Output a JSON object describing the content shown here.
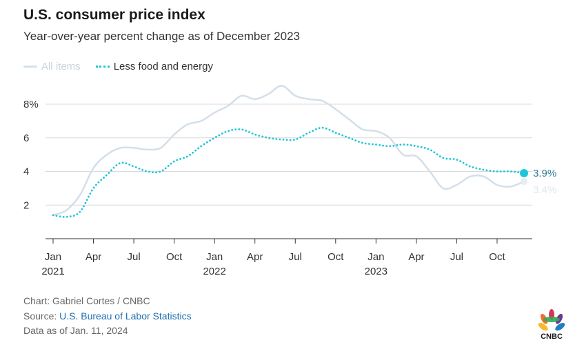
{
  "header": {
    "title": "U.S. consumer price index",
    "subtitle": "Year-over-year percent change as of December 2023"
  },
  "footer": {
    "credit": "Chart: Gabriel Cortes / CNBC",
    "source_label": "Source: ",
    "source_link": "U.S. Bureau of Labor Statistics",
    "date_note": "Data as of Jan. 11, 2024"
  },
  "logo": {
    "text": "CNBC"
  },
  "colors": {
    "all_items": "#d3dfe9",
    "core": "#1fc6d8",
    "core_label": "#2f7f92",
    "grid": "#d9d9d9",
    "axis": "#333333"
  },
  "chart_data": {
    "type": "line",
    "title": "U.S. consumer price index",
    "subtitle": "Year-over-year percent change as of December 2023",
    "x_start": "2021-01",
    "x_labels": [
      {
        "month": "2021-01",
        "line1": "Jan",
        "line2": "2021"
      },
      {
        "month": "2021-04",
        "line1": "Apr",
        "line2": ""
      },
      {
        "month": "2021-07",
        "line1": "Jul",
        "line2": ""
      },
      {
        "month": "2021-10",
        "line1": "Oct",
        "line2": ""
      },
      {
        "month": "2022-01",
        "line1": "Jan",
        "line2": "2022"
      },
      {
        "month": "2022-04",
        "line1": "Apr",
        "line2": ""
      },
      {
        "month": "2022-07",
        "line1": "Jul",
        "line2": ""
      },
      {
        "month": "2022-10",
        "line1": "Oct",
        "line2": ""
      },
      {
        "month": "2023-01",
        "line1": "Jan",
        "line2": "2023"
      },
      {
        "month": "2023-04",
        "line1": "Apr",
        "line2": ""
      },
      {
        "month": "2023-07",
        "line1": "Jul",
        "line2": ""
      },
      {
        "month": "2023-10",
        "line1": "Oct",
        "line2": ""
      }
    ],
    "y_ticks": [
      {
        "value": 2,
        "label": "2"
      },
      {
        "value": 4,
        "label": "4"
      },
      {
        "value": 6,
        "label": "6"
      },
      {
        "value": 8,
        "label": "8%"
      }
    ],
    "ylim": [
      0,
      9.6
    ],
    "grid": true,
    "legend_position": "top-left",
    "series": [
      {
        "name": "All items",
        "style": "solid",
        "values": [
          1.4,
          1.7,
          2.6,
          4.2,
          5.0,
          5.4,
          5.4,
          5.3,
          5.4,
          6.2,
          6.8,
          7.0,
          7.5,
          7.9,
          8.5,
          8.3,
          8.6,
          9.1,
          8.5,
          8.3,
          8.2,
          7.7,
          7.1,
          6.5,
          6.4,
          6.0,
          5.0,
          4.9,
          4.0,
          3.0,
          3.2,
          3.7,
          3.7,
          3.2,
          3.1,
          3.4
        ],
        "end_label": "3.4%"
      },
      {
        "name": "Less food and energy",
        "style": "dotted",
        "values": [
          1.4,
          1.3,
          1.6,
          3.0,
          3.8,
          4.5,
          4.3,
          4.0,
          4.0,
          4.6,
          4.9,
          5.5,
          6.0,
          6.4,
          6.5,
          6.2,
          6.0,
          5.9,
          5.9,
          6.3,
          6.6,
          6.3,
          6.0,
          5.7,
          5.6,
          5.5,
          5.6,
          5.5,
          5.3,
          4.8,
          4.7,
          4.3,
          4.1,
          4.0,
          4.0,
          3.9
        ],
        "end_label": "3.9%"
      }
    ]
  }
}
